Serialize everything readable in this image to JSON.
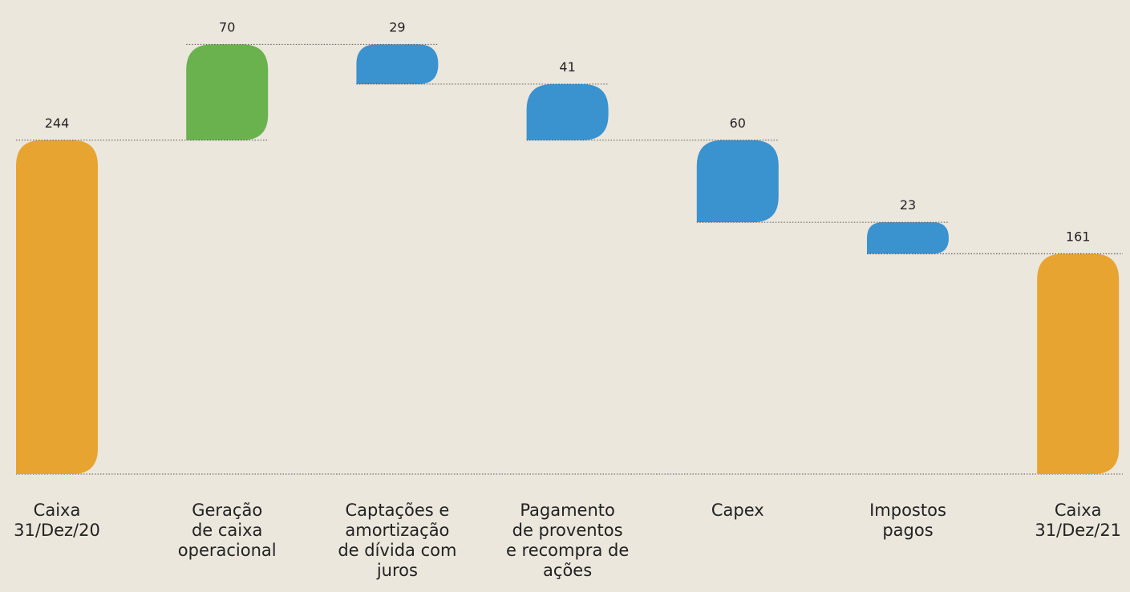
{
  "chart_data": {
    "type": "waterfall",
    "categories": [
      "Caixa\n31/Dez/20",
      "Geração\nde caixa\noperacional",
      "Captações e\namortização\nde dívida com\njuros",
      "Pagamento\nde proventos\ne recompra de\nações",
      "Capex",
      "Impostos\npagos",
      "Caixa\n31/Dez/21"
    ],
    "values": [
      244,
      70,
      -29,
      -41,
      -60,
      -23,
      161
    ],
    "value_labels": [
      "244",
      "70",
      "29",
      "41",
      "60",
      "23",
      "161"
    ],
    "measure": [
      "total",
      "relative",
      "relative",
      "relative",
      "relative",
      "relative",
      "total"
    ],
    "total_color": "#e8a431",
    "increase_color": "#6ab24e",
    "decrease_color": "#3a92cf",
    "ylim": [
      0,
      340
    ]
  }
}
